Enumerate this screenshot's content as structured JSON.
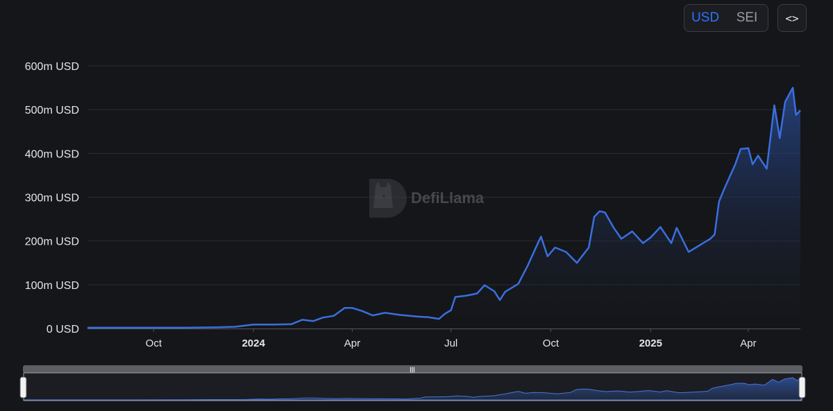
{
  "currency_toggle": {
    "options": [
      "USD",
      "SEI"
    ],
    "selected": "USD"
  },
  "embed_button": {
    "icon": "code-icon",
    "label": "<>"
  },
  "watermark": {
    "text": "DefiLlama"
  },
  "colors": {
    "line": "#3a6fe0",
    "accent": "#2f73ff",
    "background": "#151619"
  },
  "chart_data": {
    "type": "area",
    "title": "",
    "xlabel": "",
    "ylabel": "",
    "y_tick_labels": [
      "0 USD",
      "100m USD",
      "200m USD",
      "300m USD",
      "400m USD",
      "500m USD",
      "600m USD"
    ],
    "y_ticks": [
      0,
      100,
      200,
      300,
      400,
      500,
      600
    ],
    "ylim": [
      0,
      600
    ],
    "y_unit": "million USD",
    "x_range": [
      "2023-08-01",
      "2025-05-19"
    ],
    "x_ticks": [
      {
        "label": "Oct",
        "date": "2023-10-01",
        "bold": false
      },
      {
        "label": "2024",
        "date": "2024-01-01",
        "bold": true
      },
      {
        "label": "Apr",
        "date": "2024-04-01",
        "bold": false
      },
      {
        "label": "Jul",
        "date": "2024-07-01",
        "bold": false
      },
      {
        "label": "Oct",
        "date": "2024-10-01",
        "bold": false
      },
      {
        "label": "2025",
        "date": "2025-01-01",
        "bold": true
      },
      {
        "label": "Apr",
        "date": "2025-04-01",
        "bold": false
      }
    ],
    "grid": true,
    "legend": "none",
    "series": [
      {
        "values": [
          [
            "2023-08-01",
            2
          ],
          [
            "2023-09-01",
            2
          ],
          [
            "2023-10-01",
            2
          ],
          [
            "2023-11-01",
            2
          ],
          [
            "2023-12-01",
            3
          ],
          [
            "2023-12-15",
            4
          ],
          [
            "2024-01-01",
            9
          ],
          [
            "2024-01-20",
            9
          ],
          [
            "2024-02-05",
            10
          ],
          [
            "2024-02-15",
            20
          ],
          [
            "2024-02-25",
            17
          ],
          [
            "2024-03-05",
            25
          ],
          [
            "2024-03-15",
            29
          ],
          [
            "2024-03-25",
            47
          ],
          [
            "2024-04-01",
            47
          ],
          [
            "2024-04-10",
            40
          ],
          [
            "2024-04-20",
            30
          ],
          [
            "2024-05-01",
            36
          ],
          [
            "2024-05-15",
            31
          ],
          [
            "2024-06-01",
            27
          ],
          [
            "2024-06-10",
            26
          ],
          [
            "2024-06-20",
            22
          ],
          [
            "2024-06-25",
            33
          ],
          [
            "2024-07-01",
            42
          ],
          [
            "2024-07-05",
            72
          ],
          [
            "2024-07-15",
            75
          ],
          [
            "2024-07-25",
            80
          ],
          [
            "2024-08-01",
            99
          ],
          [
            "2024-08-10",
            85
          ],
          [
            "2024-08-15",
            65
          ],
          [
            "2024-08-20",
            84
          ],
          [
            "2024-09-01",
            102
          ],
          [
            "2024-09-10",
            145
          ],
          [
            "2024-09-20",
            200
          ],
          [
            "2024-09-22",
            210
          ],
          [
            "2024-09-28",
            165
          ],
          [
            "2024-10-05",
            185
          ],
          [
            "2024-10-15",
            175
          ],
          [
            "2024-10-25",
            150
          ],
          [
            "2024-11-05",
            185
          ],
          [
            "2024-11-10",
            255
          ],
          [
            "2024-11-15",
            268
          ],
          [
            "2024-11-20",
            265
          ],
          [
            "2024-11-28",
            230
          ],
          [
            "2024-12-05",
            205
          ],
          [
            "2024-12-15",
            222
          ],
          [
            "2024-12-25",
            195
          ],
          [
            "2025-01-01",
            208
          ],
          [
            "2025-01-10",
            232
          ],
          [
            "2025-01-20",
            195
          ],
          [
            "2025-01-25",
            230
          ],
          [
            "2025-02-05",
            175
          ],
          [
            "2025-02-15",
            190
          ],
          [
            "2025-02-25",
            205
          ],
          [
            "2025-03-01",
            215
          ],
          [
            "2025-03-05",
            290
          ],
          [
            "2025-03-10",
            320
          ],
          [
            "2025-03-20",
            375
          ],
          [
            "2025-03-25",
            410
          ],
          [
            "2025-04-01",
            412
          ],
          [
            "2025-04-05",
            375
          ],
          [
            "2025-04-10",
            395
          ],
          [
            "2025-04-18",
            365
          ],
          [
            "2025-04-25",
            510
          ],
          [
            "2025-04-30",
            435
          ],
          [
            "2025-05-05",
            518
          ],
          [
            "2025-05-12",
            550
          ],
          [
            "2025-05-15",
            488
          ],
          [
            "2025-05-19",
            498
          ]
        ]
      }
    ]
  }
}
